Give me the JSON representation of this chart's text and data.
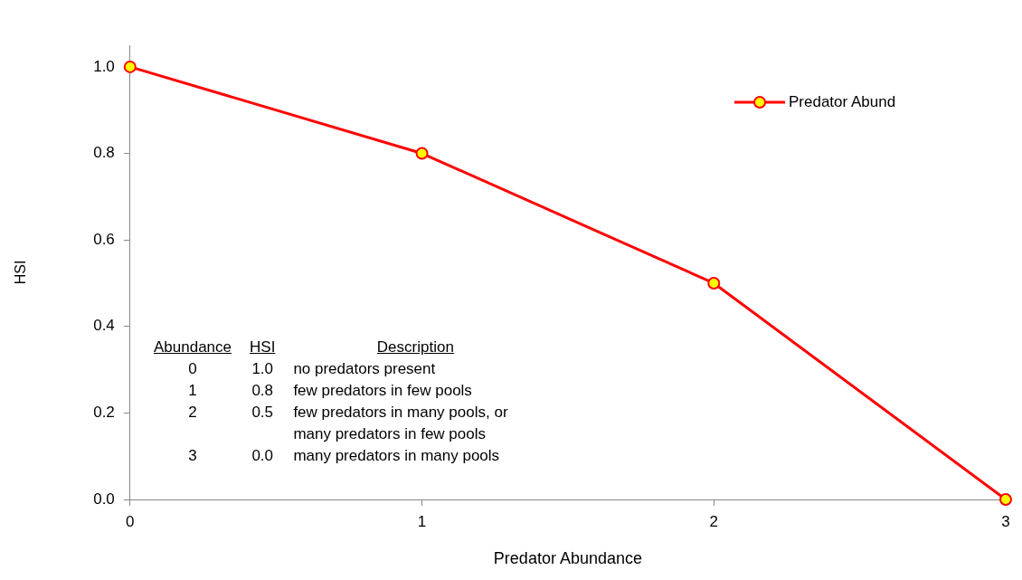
{
  "chart_data": {
    "type": "line",
    "xlabel": "Predator Abundance",
    "ylabel": "HSI",
    "x": [
      0,
      1,
      2,
      3
    ],
    "series": [
      {
        "name": "Predator Abund",
        "color": "#ff0000",
        "values": [
          1.0,
          0.8,
          0.5,
          0.0
        ]
      }
    ],
    "xlim": [
      0,
      3
    ],
    "xticks": [
      0,
      1,
      2,
      3
    ],
    "ylim": [
      0,
      1.05
    ],
    "yticks": [
      {
        "value": 0,
        "label": "0.0"
      },
      {
        "value": 0.2,
        "label": "0.2"
      },
      {
        "value": 0.4,
        "label": "0.4"
      },
      {
        "value": 0.6,
        "label": "0.6"
      },
      {
        "value": 0.8,
        "label": "0.8"
      },
      {
        "value": 1,
        "label": "1.0"
      }
    ],
    "annotations": [
      "Abundance",
      "HSI",
      "Description",
      "0",
      "1.0",
      "no predators present",
      "1",
      "0.8",
      "few predators in few pools",
      "2",
      "0.5",
      "few predators in many pools, or many predators in few pools",
      "3",
      "0.0",
      "many predators in many pools"
    ],
    "grid": false,
    "legend": "top right",
    "marker": "circle",
    "line_style": "solid"
  }
}
